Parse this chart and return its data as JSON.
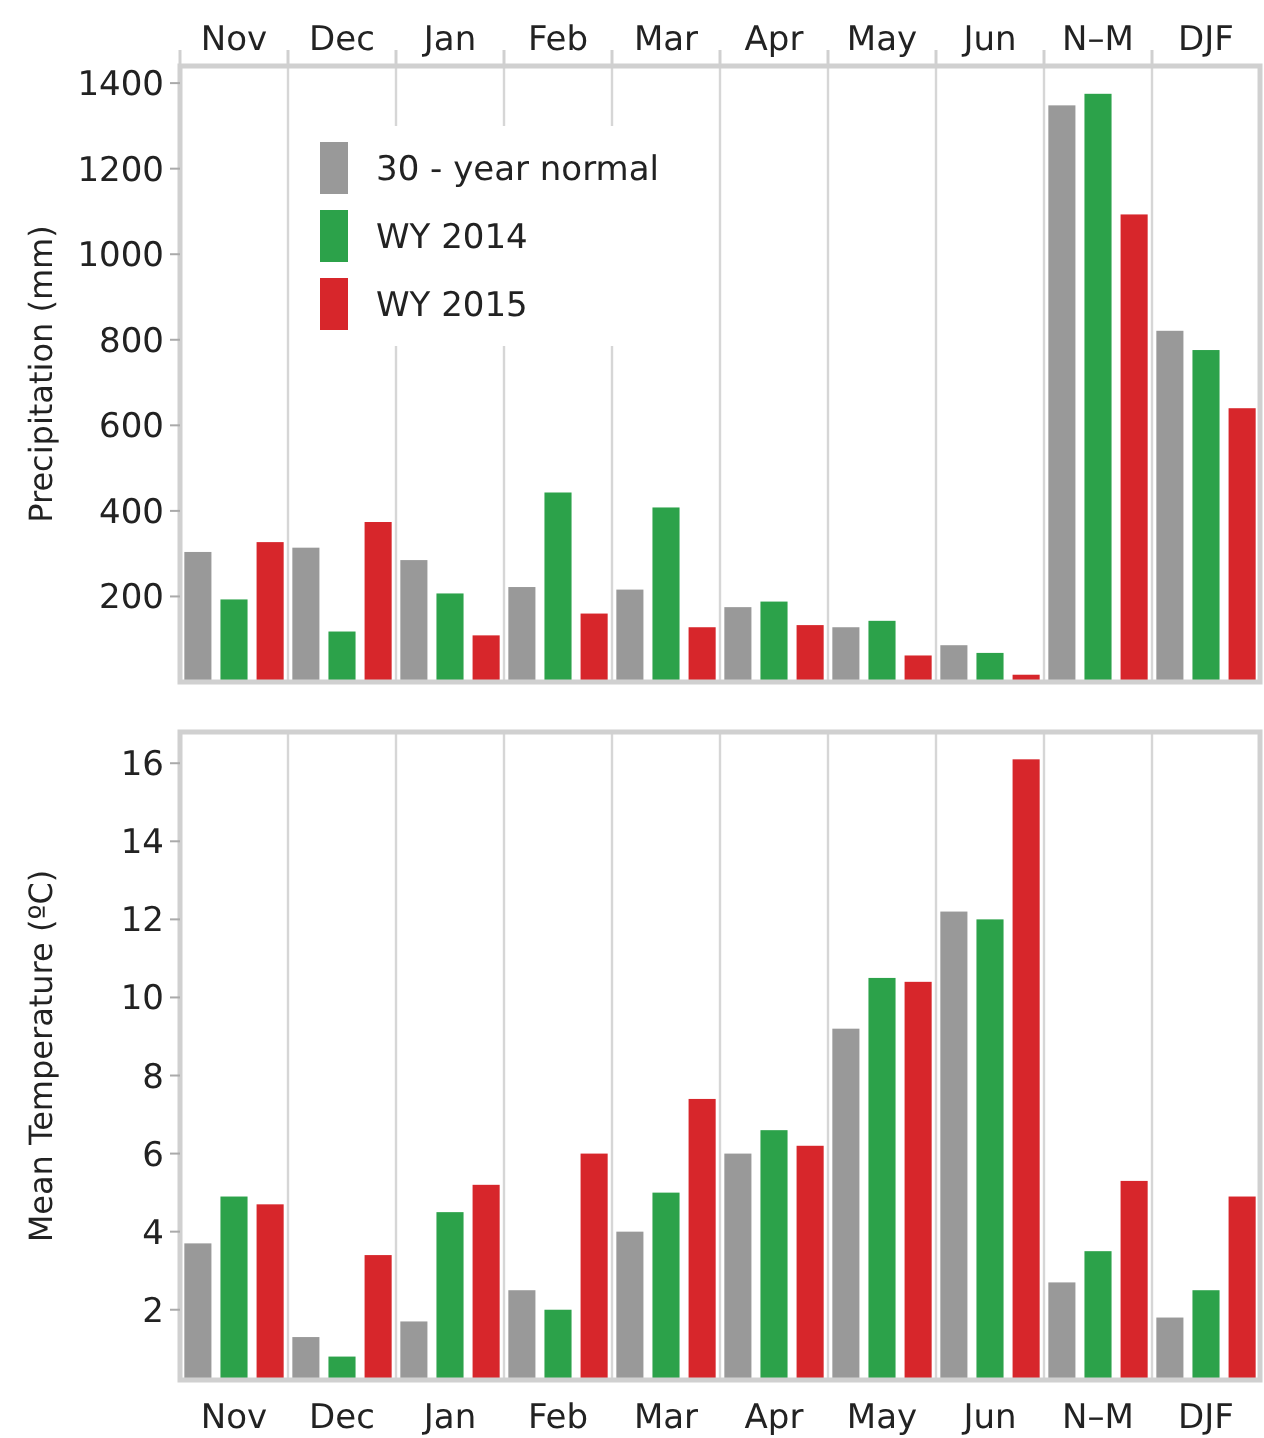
{
  "chart_data": [
    {
      "type": "bar",
      "ylabel": "Precipitation (mm)",
      "categories": [
        "Nov",
        "Dec",
        "Jan",
        "Feb",
        "Mar",
        "Apr",
        "May",
        "Jun",
        "N–M",
        "DJF"
      ],
      "ylim": [
        0,
        1440
      ],
      "yticks": [
        200,
        400,
        600,
        800,
        1000,
        1200,
        1400
      ],
      "grid": "x",
      "legend": "top left",
      "series": [
        {
          "name": "30 - year normal",
          "color": "#999999",
          "values": [
            304,
            314,
            285,
            222,
            216,
            175,
            128,
            86,
            1348,
            821
          ]
        },
        {
          "name": "WY 2014",
          "color": "#2ca24a",
          "values": [
            193,
            118,
            207,
            443,
            408,
            188,
            143,
            68,
            1375,
            776
          ]
        },
        {
          "name": "WY 2015",
          "color": "#d7262b",
          "values": [
            327,
            374,
            109,
            160,
            128,
            133,
            62,
            17,
            1093,
            640
          ]
        }
      ]
    },
    {
      "type": "bar",
      "ylabel": "Mean Temperature (ºC)",
      "categories": [
        "Nov",
        "Dec",
        "Jan",
        "Feb",
        "Mar",
        "Apr",
        "May",
        "Jun",
        "N–M",
        "DJF"
      ],
      "ylim": [
        0.2,
        16.8
      ],
      "yticks": [
        2,
        4,
        6,
        8,
        10,
        12,
        14,
        16
      ],
      "grid": "x",
      "series": [
        {
          "color": "#999999",
          "values": [
            3.7,
            1.3,
            1.7,
            2.5,
            4.0,
            6.0,
            9.2,
            12.2,
            2.7,
            1.8
          ]
        },
        {
          "color": "#2ca24a",
          "values": [
            4.9,
            0.8,
            4.5,
            2.0,
            5.0,
            6.6,
            10.5,
            12.0,
            3.5,
            2.5
          ]
        },
        {
          "color": "#d7262b",
          "values": [
            4.7,
            3.4,
            5.2,
            6.0,
            7.4,
            6.2,
            10.4,
            16.1,
            5.3,
            4.9
          ]
        }
      ]
    }
  ]
}
